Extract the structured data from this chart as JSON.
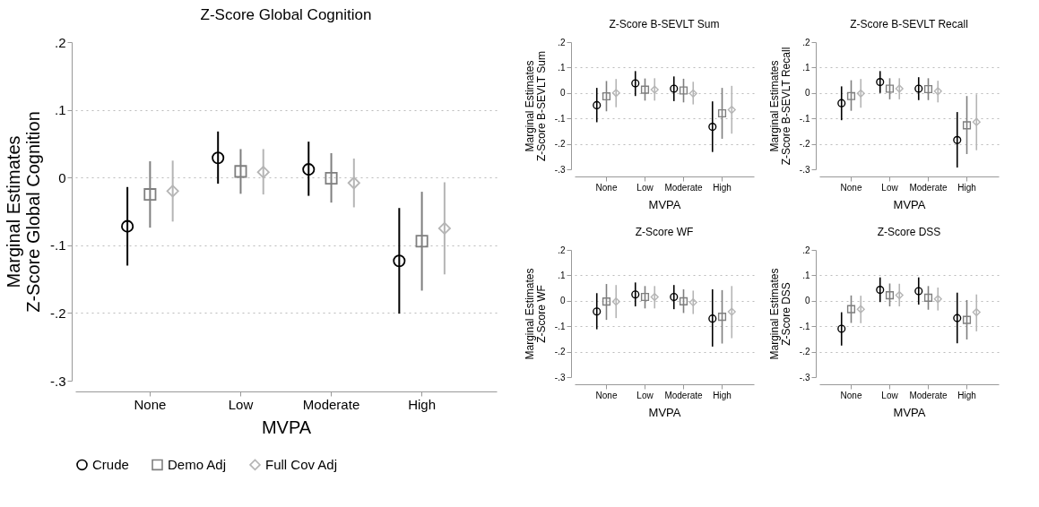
{
  "chart_data": [
    {
      "type": "scatter",
      "title": "Z-Score Global Cognition",
      "xlabel": "MVPA",
      "ylabel": "Marginal Estimates\nZ-Score Global Cognition",
      "categories": [
        "None",
        "Low",
        "Moderate",
        "High"
      ],
      "ylim": [
        -0.3,
        0.2
      ],
      "yticks": [
        {
          "value": -0.3,
          "label": "-.3"
        },
        {
          "value": -0.2,
          "label": "-.2"
        },
        {
          "value": -0.1,
          "label": "-.1"
        },
        {
          "value": 0,
          "label": "0"
        },
        {
          "value": 0.1,
          "label": ".1"
        },
        {
          "value": 0.2,
          "label": ".2"
        }
      ],
      "grid": "y",
      "legend": "bottom",
      "series": [
        {
          "name": "Crude",
          "color": "#000000",
          "marker": "circle",
          "values": [
            -0.072,
            0.029,
            0.012,
            -0.123
          ],
          "errors": [
            [
              -0.13,
              -0.014
            ],
            [
              -0.009,
              0.068
            ],
            [
              -0.027,
              0.053
            ],
            [
              -0.201,
              -0.045
            ]
          ]
        },
        {
          "name": "Demo Adj",
          "color": "#7f7f7f",
          "marker": "square",
          "values": [
            -0.025,
            0.009,
            -0.001,
            -0.094
          ],
          "errors": [
            [
              -0.074,
              0.024
            ],
            [
              -0.024,
              0.042
            ],
            [
              -0.037,
              0.036
            ],
            [
              -0.167,
              -0.021
            ]
          ]
        },
        {
          "name": "Full Cov Adj",
          "color": "#b5b5b5",
          "marker": "diamond",
          "values": [
            -0.02,
            0.008,
            -0.008,
            -0.075
          ],
          "errors": [
            [
              -0.065,
              0.025
            ],
            [
              -0.025,
              0.042
            ],
            [
              -0.044,
              0.028
            ],
            [
              -0.143,
              -0.007
            ]
          ]
        }
      ]
    },
    {
      "type": "scatter",
      "title": "Z-Score B-SEVLT Sum",
      "xlabel": "MVPA",
      "ylabel": "Marginal Estimates\nZ-Score B-SEVLT Sum",
      "categories": [
        "None",
        "Low",
        "Moderate",
        "High"
      ],
      "ylim": [
        -0.3,
        0.2
      ],
      "yticks": [
        {
          "value": -0.3,
          "label": "-.3"
        },
        {
          "value": -0.2,
          "label": "-.2"
        },
        {
          "value": -0.1,
          "label": "-.1"
        },
        {
          "value": 0,
          "label": "0"
        },
        {
          "value": 0.1,
          "label": ".1"
        },
        {
          "value": 0.2,
          "label": ".2"
        }
      ],
      "grid": "y",
      "legend": "bottom",
      "series": [
        {
          "name": "Crude",
          "color": "#000000",
          "marker": "circle",
          "values": [
            -0.048,
            0.038,
            0.017,
            -0.133
          ],
          "errors": [
            [
              -0.115,
              0.02
            ],
            [
              -0.012,
              0.086
            ],
            [
              -0.032,
              0.065
            ],
            [
              -0.232,
              -0.033
            ]
          ]
        },
        {
          "name": "Demo Adj",
          "color": "#7f7f7f",
          "marker": "square",
          "values": [
            -0.013,
            0.013,
            0.01,
            -0.08
          ],
          "errors": [
            [
              -0.072,
              0.047
            ],
            [
              -0.03,
              0.057
            ],
            [
              -0.037,
              0.056
            ],
            [
              -0.18,
              0.02
            ]
          ]
        },
        {
          "name": "Full Cov Adj",
          "color": "#b5b5b5",
          "marker": "diamond",
          "values": [
            0,
            0.013,
            -0.002,
            -0.066
          ],
          "errors": [
            [
              -0.056,
              0.055
            ],
            [
              -0.03,
              0.058
            ],
            [
              -0.045,
              0.044
            ],
            [
              -0.16,
              0.028
            ]
          ]
        }
      ]
    },
    {
      "type": "scatter",
      "title": "Z-Score B-SEVLT Recall",
      "xlabel": "MVPA",
      "ylabel": "Marginal Estimates\nZ-Score B-SEVLT Recall",
      "categories": [
        "None",
        "Low",
        "Moderate",
        "High"
      ],
      "ylim": [
        -0.3,
        0.2
      ],
      "yticks": [
        {
          "value": -0.3,
          "label": "-.3"
        },
        {
          "value": -0.2,
          "label": "-.2"
        },
        {
          "value": -0.1,
          "label": "-.1"
        },
        {
          "value": 0,
          "label": "0"
        },
        {
          "value": 0.1,
          "label": ".1"
        },
        {
          "value": 0.2,
          "label": ".2"
        }
      ],
      "grid": "y",
      "legend": "bottom",
      "series": [
        {
          "name": "Crude",
          "color": "#000000",
          "marker": "circle",
          "values": [
            -0.04,
            0.043,
            0.017,
            -0.185
          ],
          "errors": [
            [
              -0.107,
              0.026
            ],
            [
              0,
              0.086
            ],
            [
              -0.028,
              0.062
            ],
            [
              -0.293,
              -0.075
            ]
          ]
        },
        {
          "name": "Demo Adj",
          "color": "#7f7f7f",
          "marker": "square",
          "values": [
            -0.012,
            0.017,
            0.015,
            -0.127
          ],
          "errors": [
            [
              -0.07,
              0.05
            ],
            [
              -0.025,
              0.058
            ],
            [
              -0.028,
              0.058
            ],
            [
              -0.24,
              -0.012
            ]
          ]
        },
        {
          "name": "Full Cov Adj",
          "color": "#b5b5b5",
          "marker": "diamond",
          "values": [
            -0.002,
            0.017,
            0.007,
            -0.114
          ],
          "errors": [
            [
              -0.058,
              0.055
            ],
            [
              -0.025,
              0.058
            ],
            [
              -0.037,
              0.048
            ],
            [
              -0.225,
              -0.005
            ]
          ]
        }
      ]
    },
    {
      "type": "scatter",
      "title": "Z-Score WF",
      "xlabel": "MVPA",
      "ylabel": "Marginal Estimates\nZ-Score WF",
      "categories": [
        "None",
        "Low",
        "Moderate",
        "High"
      ],
      "ylim": [
        -0.3,
        0.2
      ],
      "yticks": [
        {
          "value": -0.3,
          "label": "-.3"
        },
        {
          "value": -0.2,
          "label": "-.2"
        },
        {
          "value": -0.1,
          "label": "-.1"
        },
        {
          "value": 0,
          "label": "0"
        },
        {
          "value": 0.1,
          "label": ".1"
        },
        {
          "value": 0.2,
          "label": ".2"
        }
      ],
      "grid": "y",
      "legend": "bottom",
      "series": [
        {
          "name": "Crude",
          "color": "#000000",
          "marker": "circle",
          "values": [
            -0.042,
            0.025,
            0.015,
            -0.07
          ],
          "errors": [
            [
              -0.112,
              0.03
            ],
            [
              -0.022,
              0.072
            ],
            [
              -0.033,
              0.062
            ],
            [
              -0.18,
              0.045
            ]
          ]
        },
        {
          "name": "Demo Adj",
          "color": "#7f7f7f",
          "marker": "square",
          "values": [
            -0.003,
            0.015,
            -0.002,
            -0.063
          ],
          "errors": [
            [
              -0.075,
              0.066
            ],
            [
              -0.03,
              0.058
            ],
            [
              -0.048,
              0.045
            ],
            [
              -0.168,
              0.042
            ]
          ]
        },
        {
          "name": "Full Cov Adj",
          "color": "#b5b5b5",
          "marker": "diamond",
          "values": [
            -0.003,
            0.015,
            -0.006,
            -0.043
          ],
          "errors": [
            [
              -0.068,
              0.062
            ],
            [
              -0.03,
              0.058
            ],
            [
              -0.052,
              0.04
            ],
            [
              -0.147,
              0.058
            ]
          ]
        }
      ]
    },
    {
      "type": "scatter",
      "title": "Z-Score DSS",
      "xlabel": "MVPA",
      "ylabel": "Marginal Estimates\nZ-Score DSS",
      "categories": [
        "None",
        "Low",
        "Moderate",
        "High"
      ],
      "ylim": [
        -0.3,
        0.2
      ],
      "yticks": [
        {
          "value": -0.3,
          "label": "-.3"
        },
        {
          "value": -0.2,
          "label": "-.2"
        },
        {
          "value": -0.1,
          "label": "-.1"
        },
        {
          "value": 0,
          "label": "0"
        },
        {
          "value": 0.1,
          "label": ".1"
        },
        {
          "value": 0.2,
          "label": ".2"
        }
      ],
      "grid": "y",
      "legend": "bottom",
      "series": [
        {
          "name": "Crude",
          "color": "#000000",
          "marker": "circle",
          "values": [
            -0.11,
            0.043,
            0.038,
            -0.068
          ],
          "errors": [
            [
              -0.176,
              -0.045
            ],
            [
              -0.005,
              0.092
            ],
            [
              -0.015,
              0.092
            ],
            [
              -0.167,
              0.032
            ]
          ]
        },
        {
          "name": "Demo Adj",
          "color": "#7f7f7f",
          "marker": "square",
          "values": [
            -0.033,
            0.022,
            0.012,
            -0.075
          ],
          "errors": [
            [
              -0.087,
              0.021
            ],
            [
              -0.022,
              0.068
            ],
            [
              -0.035,
              0.058
            ],
            [
              -0.152,
              0.003
            ]
          ]
        },
        {
          "name": "Full Cov Adj",
          "color": "#b5b5b5",
          "marker": "diamond",
          "values": [
            -0.033,
            0.022,
            0.007,
            -0.045
          ],
          "errors": [
            [
              -0.088,
              0.02
            ],
            [
              -0.022,
              0.067
            ],
            [
              -0.038,
              0.052
            ],
            [
              -0.12,
              0.025
            ]
          ]
        }
      ]
    }
  ]
}
